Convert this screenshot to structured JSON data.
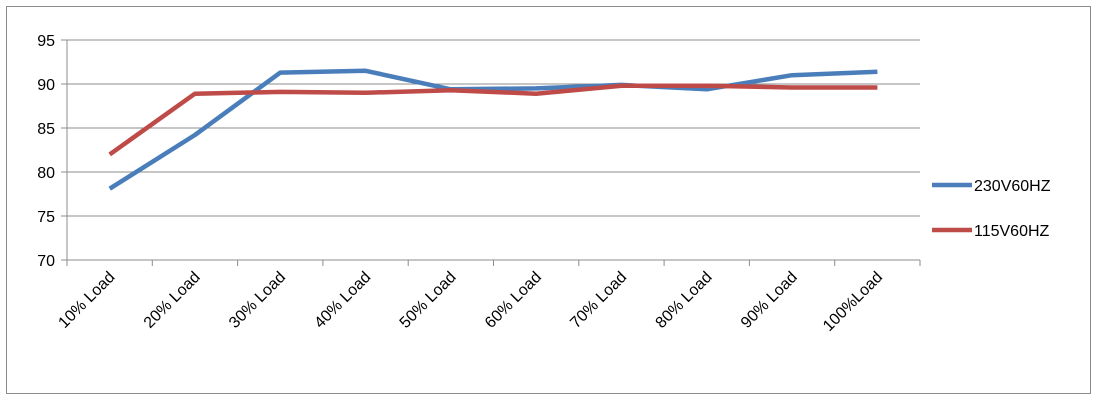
{
  "chart_data": {
    "type": "line",
    "title": "",
    "xlabel": "",
    "ylabel": "",
    "categories": [
      "10% Load",
      "20% Load",
      "30% Load",
      "40% Load",
      "50% Load",
      "60% Load",
      "70% Load",
      "80% Load",
      "90% Load",
      "100%Load"
    ],
    "ylim": [
      70,
      95
    ],
    "yticks": [
      70,
      75,
      80,
      85,
      90,
      95
    ],
    "grid": "horizontal",
    "legend_position": "right",
    "series": [
      {
        "name": "230V60HZ",
        "color": "#4a7ebb",
        "values": [
          78.1,
          84.2,
          91.3,
          91.5,
          89.4,
          89.5,
          89.9,
          89.4,
          91.0,
          91.4
        ]
      },
      {
        "name": "115V60HZ",
        "color": "#be4b48",
        "values": [
          82.0,
          88.9,
          89.1,
          89.0,
          89.3,
          88.9,
          89.8,
          89.8,
          89.6,
          89.6
        ]
      }
    ]
  }
}
